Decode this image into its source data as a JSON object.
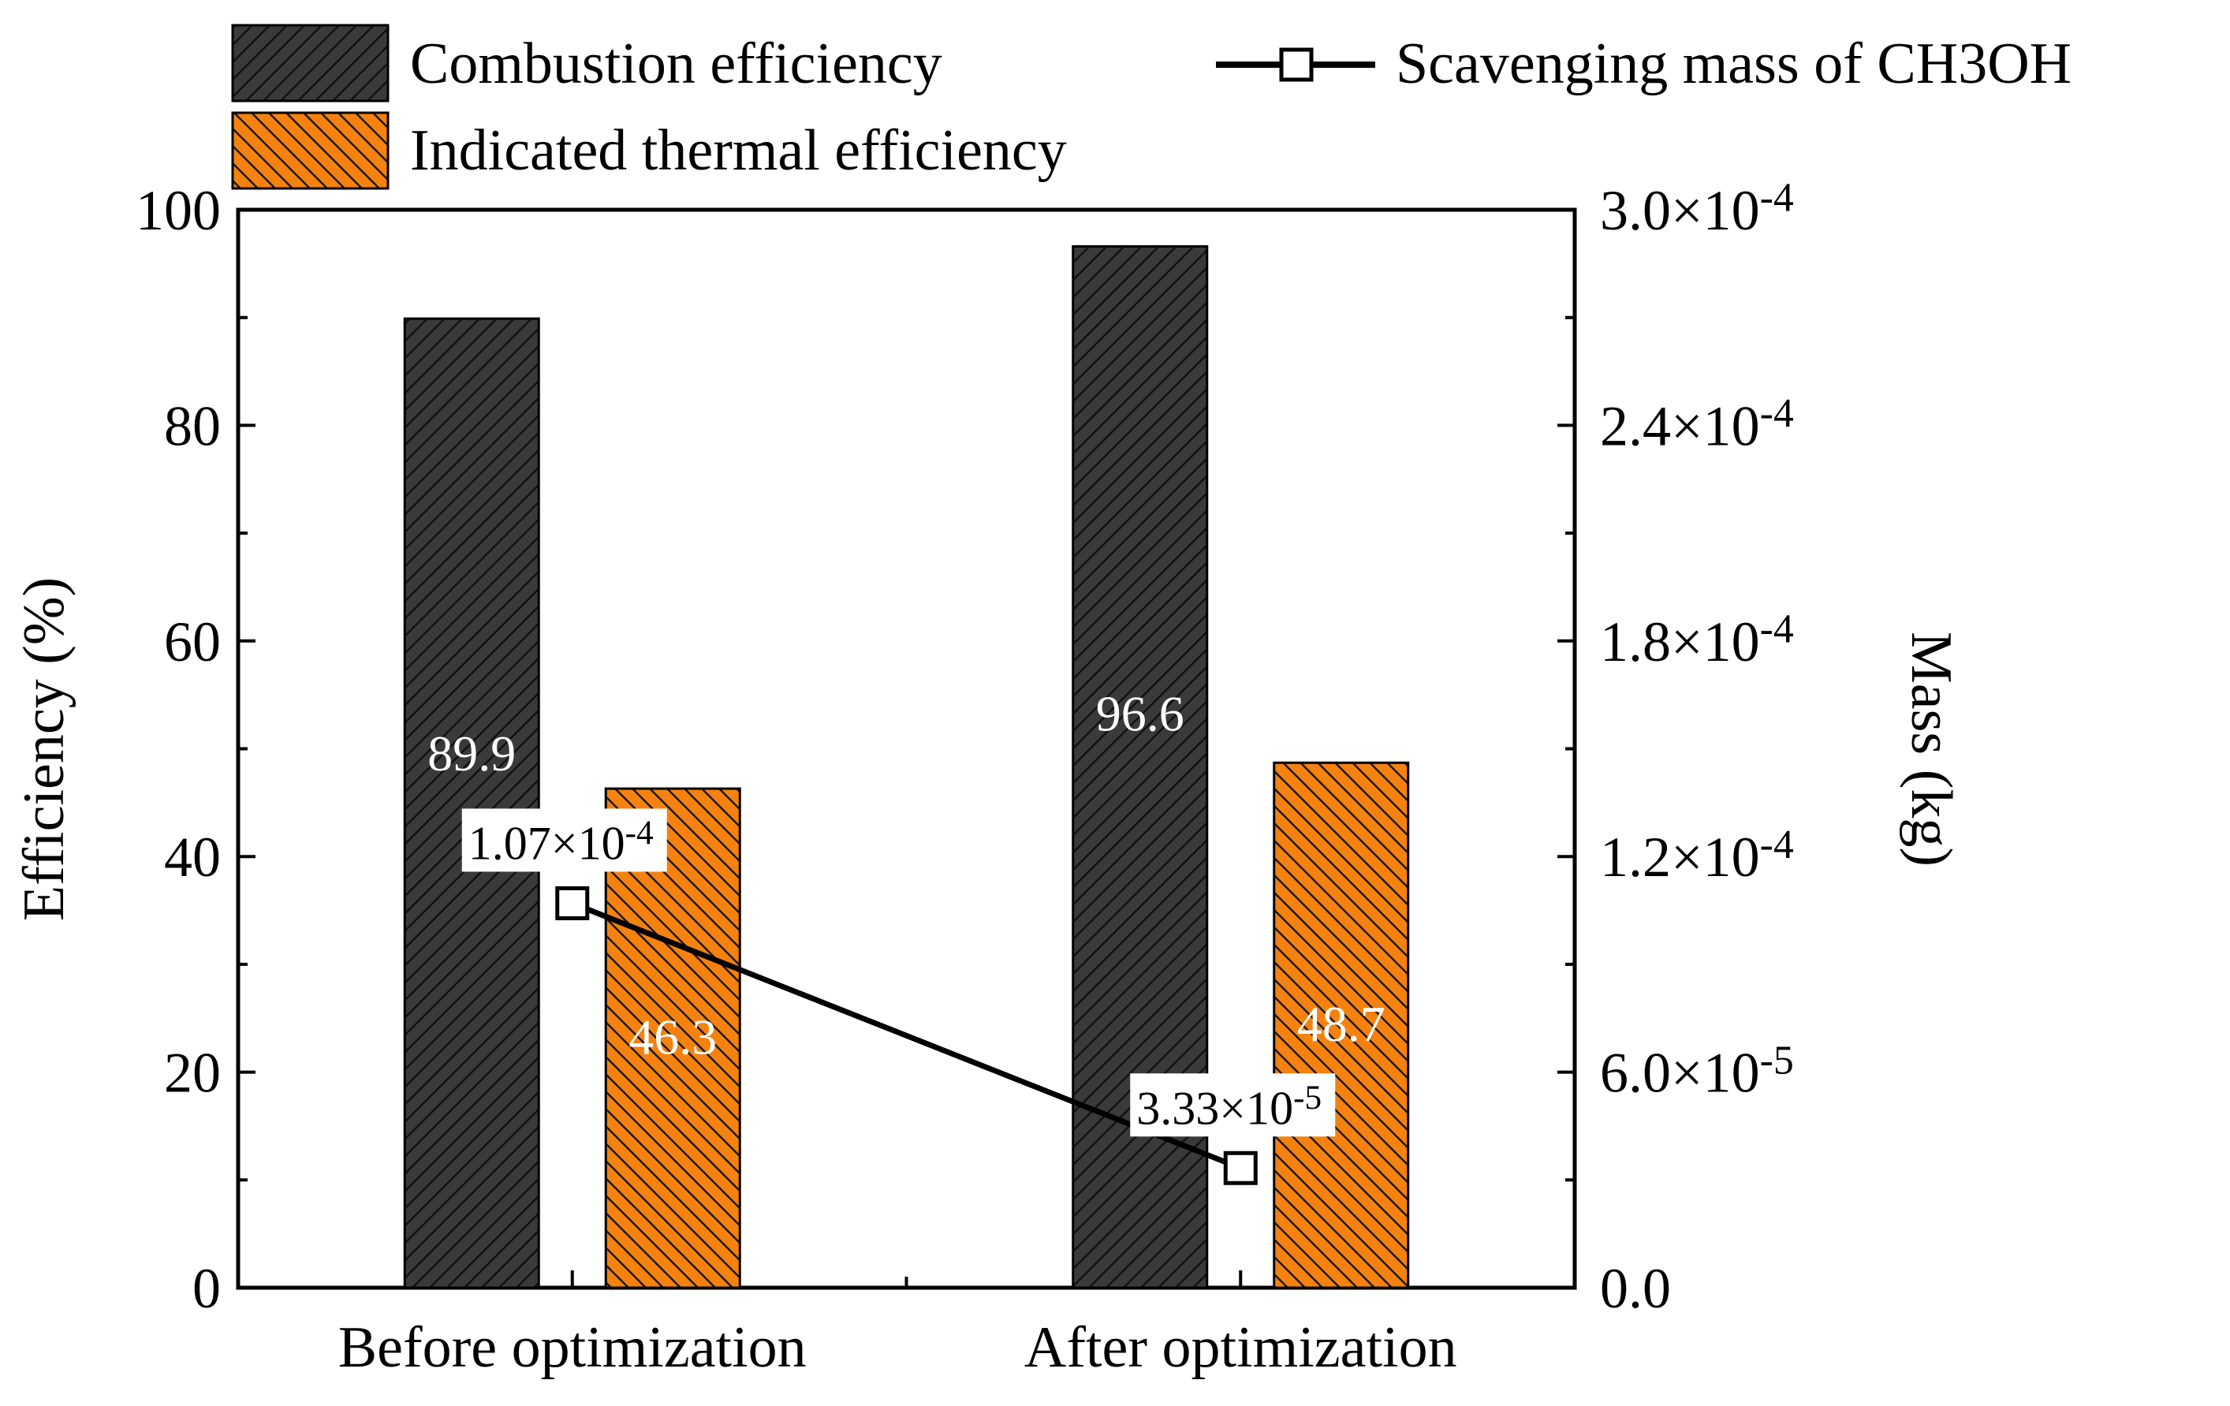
{
  "chart_data": {
    "type": "bar",
    "categories": [
      "Before optimization",
      "After optimization"
    ],
    "series": [
      {
        "name": "Combustion efficiency",
        "axis": "left",
        "values": [
          89.9,
          96.6
        ],
        "labels": [
          "89.9",
          "96.6"
        ],
        "color": "#3a3a3a",
        "hatch": "diag-right"
      },
      {
        "name": "Indicated thermal efficiency",
        "axis": "left",
        "values": [
          46.3,
          48.7
        ],
        "labels": [
          "46.3",
          "48.7"
        ],
        "color": "#f5820f",
        "hatch": "diag-left"
      }
    ],
    "line_series": {
      "name": "Scavenging mass of CH3OH",
      "axis": "right",
      "values": [
        0.000107,
        3.33e-05
      ],
      "annotations": [
        {
          "mantissa": "1.07×10",
          "exponent": "-4"
        },
        {
          "mantissa": "3.33×10",
          "exponent": "-5"
        }
      ]
    },
    "left_axis": {
      "label": "Efficiency (%)",
      "ylim": [
        0,
        100
      ],
      "ticks": [
        0,
        20,
        40,
        60,
        80,
        100
      ],
      "tick_labels": [
        "0",
        "20",
        "40",
        "60",
        "80",
        "100"
      ]
    },
    "right_axis": {
      "label": "Mass (kg)",
      "ylim": [
        0,
        0.0003
      ],
      "ticks": [
        0,
        6e-05,
        0.00012,
        0.00018,
        0.00024,
        0.0003
      ],
      "tick_labels": [
        {
          "mantissa": "0.0",
          "exponent": ""
        },
        {
          "mantissa": "6.0×10",
          "exponent": "-5"
        },
        {
          "mantissa": "1.2×10",
          "exponent": "-4"
        },
        {
          "mantissa": "1.8×10",
          "exponent": "-4"
        },
        {
          "mantissa": "2.4×10",
          "exponent": "-4"
        },
        {
          "mantissa": "3.0×10",
          "exponent": "-4"
        }
      ]
    },
    "legend": {
      "placement": "top",
      "entries": [
        "Combustion efficiency",
        "Indicated thermal efficiency",
        "Scavenging mass of CH3OH"
      ]
    },
    "grid": false
  }
}
